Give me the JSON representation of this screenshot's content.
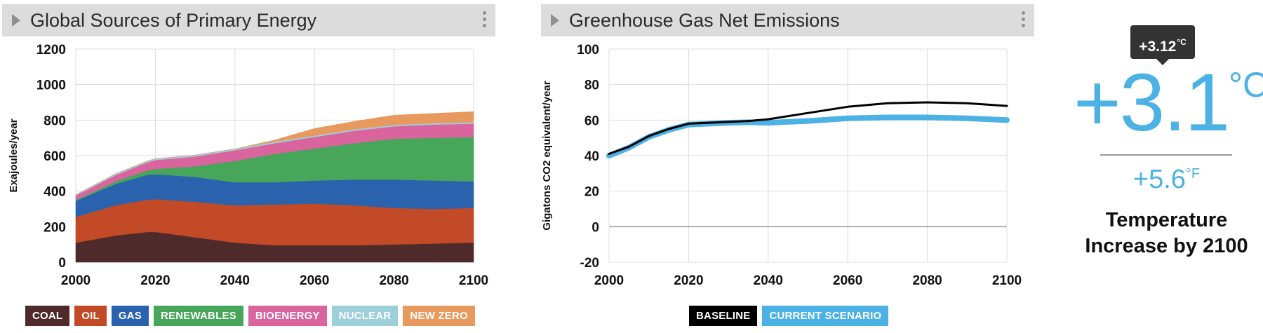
{
  "panels": {
    "energy": {
      "title": "Global Sources of Primary Energy"
    },
    "emissions": {
      "title": "Greenhouse Gas Net Emissions"
    }
  },
  "chart_data": [
    {
      "type": "area",
      "stacked": true,
      "title": "Global Sources of Primary Energy",
      "ylabel": "Exajoules/year",
      "xlabel": "",
      "xlim": [
        2000,
        2100
      ],
      "ylim": [
        0,
        1200
      ],
      "x_ticks": [
        2000,
        2020,
        2040,
        2060,
        2080,
        2100
      ],
      "y_ticks": [
        0,
        200,
        400,
        600,
        800,
        1000,
        1200
      ],
      "grid": true,
      "legend_position": "bottom",
      "x": [
        2000,
        2010,
        2018,
        2020,
        2030,
        2040,
        2050,
        2060,
        2070,
        2080,
        2090,
        2100
      ],
      "series": [
        {
          "name": "COAL",
          "color": "#4f2a2a",
          "values": [
            110,
            150,
            170,
            170,
            140,
            110,
            95,
            95,
            95,
            100,
            105,
            110
          ]
        },
        {
          "name": "OIL",
          "color": "#c24a26",
          "values": [
            145,
            170,
            182,
            185,
            200,
            210,
            230,
            235,
            225,
            205,
            195,
            195
          ]
        },
        {
          "name": "GAS",
          "color": "#2a62ad",
          "values": [
            90,
            120,
            140,
            140,
            140,
            130,
            125,
            130,
            145,
            160,
            160,
            150
          ]
        },
        {
          "name": "RENEWABLES",
          "color": "#47a659",
          "values": [
            5,
            15,
            25,
            30,
            60,
            120,
            160,
            180,
            205,
            230,
            240,
            250
          ]
        },
        {
          "name": "BIOENERGY",
          "color": "#d9649e",
          "values": [
            25,
            35,
            45,
            50,
            55,
            60,
            60,
            65,
            70,
            70,
            75,
            75
          ]
        },
        {
          "name": "NUCLEAR",
          "color": "#9ccfda",
          "values": [
            5,
            8,
            8,
            8,
            8,
            8,
            8,
            8,
            8,
            8,
            8,
            8
          ]
        },
        {
          "name": "NEW ZERO",
          "color": "#e8995e",
          "values": [
            0,
            0,
            0,
            0,
            0,
            0,
            10,
            40,
            45,
            55,
            55,
            60
          ]
        }
      ]
    },
    {
      "type": "line",
      "title": "Greenhouse Gas Net Emissions",
      "ylabel": "Gigatons CO2 equivalent/year",
      "xlabel": "",
      "xlim": [
        2000,
        2100
      ],
      "ylim": [
        -20,
        100
      ],
      "x_ticks": [
        2000,
        2020,
        2040,
        2060,
        2080,
        2100
      ],
      "y_ticks": [
        -20,
        0,
        20,
        40,
        60,
        80,
        100
      ],
      "grid": true,
      "legend_position": "bottom",
      "x": [
        2000,
        2005,
        2010,
        2015,
        2020,
        2025,
        2030,
        2035,
        2040,
        2050,
        2060,
        2070,
        2080,
        2090,
        2100
      ],
      "series": [
        {
          "name": "BASELINE",
          "color": "#000000",
          "values": [
            41,
            45,
            51,
            55,
            58,
            58.5,
            59,
            59.5,
            60.5,
            64,
            67.5,
            69.5,
            70,
            69.5,
            68
          ]
        },
        {
          "name": "CURRENT SCENARIO",
          "color": "#4cb1e4",
          "values": [
            40,
            44.5,
            50.5,
            54.5,
            57.5,
            58,
            58.5,
            58.8,
            58.5,
            59.5,
            61,
            61.5,
            61.5,
            61,
            60
          ]
        }
      ]
    }
  ],
  "temperature": {
    "tooltip_value": "+3.12",
    "tooltip_unit": "°C",
    "celsius_value": "+3.1",
    "celsius_unit": "°C",
    "fahrenheit_value": "+5.6",
    "fahrenheit_unit": "°F",
    "caption": "Temperature Increase by 2100",
    "accent_color": "#4cb1e4"
  }
}
